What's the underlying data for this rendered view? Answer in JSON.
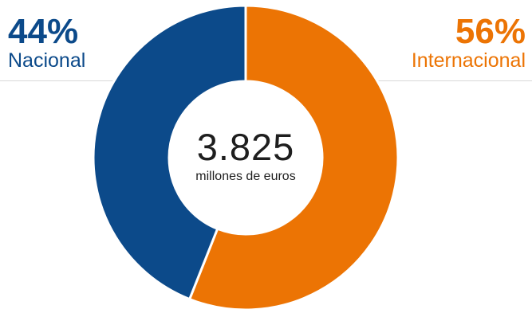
{
  "colors": {
    "nacional": "#0c4a8a",
    "internacional": "#ec7404"
  },
  "chart_data": {
    "type": "pie",
    "style": "donut",
    "categories": [
      "Nacional",
      "Internacional"
    ],
    "values": [
      44,
      56
    ],
    "labels": {
      "nacional_pct": "44%",
      "nacional_name": "Nacional",
      "internacional_pct": "56%",
      "internacional_name": "Internacional"
    },
    "total_value": "3.825",
    "total_unit": "millones de euros"
  }
}
